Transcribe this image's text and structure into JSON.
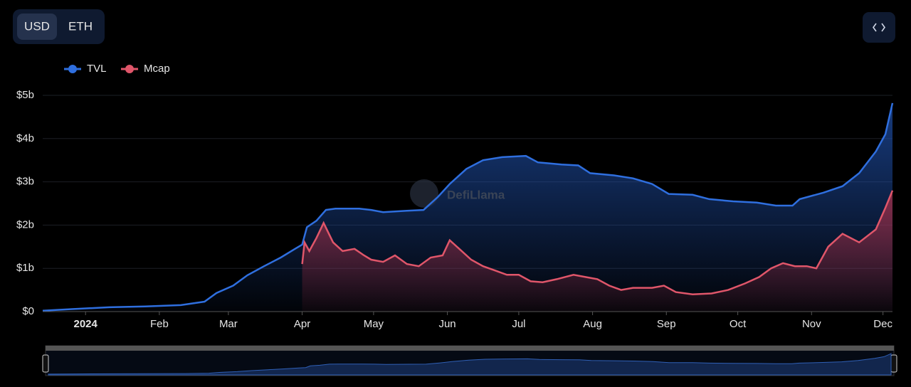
{
  "ui": {
    "currency_options": [
      "USD",
      "ETH"
    ],
    "watermark": "DefiLlama"
  },
  "chart_data": {
    "type": "area",
    "xlim": [
      -18,
      339
    ],
    "xticks": [
      {
        "value": 0,
        "label": "2024"
      },
      {
        "value": 31,
        "label": "Feb"
      },
      {
        "value": 60,
        "label": "Mar"
      },
      {
        "value": 91,
        "label": "Apr"
      },
      {
        "value": 121,
        "label": "May"
      },
      {
        "value": 152,
        "label": "Jun"
      },
      {
        "value": 182,
        "label": "Jul"
      },
      {
        "value": 213,
        "label": "Aug"
      },
      {
        "value": 244,
        "label": "Sep"
      },
      {
        "value": 274,
        "label": "Oct"
      },
      {
        "value": 305,
        "label": "Nov"
      },
      {
        "value": 335,
        "label": "Dec"
      }
    ],
    "ylim": [
      0,
      5
    ],
    "yticks": [
      {
        "value": 0,
        "label": "$0"
      },
      {
        "value": 1,
        "label": "$1b"
      },
      {
        "value": 2,
        "label": "$2b"
      },
      {
        "value": 3,
        "label": "$3b"
      },
      {
        "value": 4,
        "label": "$4b"
      },
      {
        "value": 5,
        "label": "$5b"
      }
    ],
    "grid": true,
    "legend": "top-left",
    "series": [
      {
        "name": "TVL",
        "color": "#2f6fdf",
        "x": [
          -18,
          -5,
          10,
          25,
          40,
          50,
          55,
          62,
          68,
          75,
          82,
          88,
          91,
          93,
          97,
          101,
          105,
          115,
          120,
          125,
          135,
          142,
          148,
          153,
          160,
          167,
          175,
          185,
          190,
          200,
          207,
          212,
          222,
          230,
          238,
          245,
          255,
          262,
          272,
          282,
          290,
          297,
          300,
          310,
          318,
          325,
          332,
          336,
          339
        ],
        "values": [
          0.02,
          0.06,
          0.1,
          0.12,
          0.15,
          0.23,
          0.43,
          0.6,
          0.84,
          1.05,
          1.25,
          1.45,
          1.55,
          1.95,
          2.1,
          2.35,
          2.38,
          2.38,
          2.35,
          2.3,
          2.33,
          2.35,
          2.65,
          2.95,
          3.3,
          3.5,
          3.57,
          3.6,
          3.45,
          3.4,
          3.38,
          3.2,
          3.15,
          3.08,
          2.95,
          2.72,
          2.7,
          2.6,
          2.55,
          2.52,
          2.45,
          2.45,
          2.6,
          2.75,
          2.9,
          3.2,
          3.7,
          4.1,
          4.82
        ]
      },
      {
        "name": "Mcap",
        "color": "#e0566a",
        "x": [
          91,
          92,
          94,
          97,
          100,
          104,
          108,
          113,
          117,
          120,
          125,
          130,
          135,
          140,
          145,
          150,
          153,
          157,
          162,
          167,
          172,
          177,
          182,
          187,
          192,
          198,
          205,
          210,
          215,
          220,
          225,
          230,
          238,
          243,
          248,
          255,
          263,
          270,
          277,
          283,
          288,
          293,
          298,
          303,
          307,
          312,
          318,
          325,
          332,
          336,
          339
        ],
        "values": [
          1.1,
          1.6,
          1.4,
          1.7,
          2.05,
          1.6,
          1.4,
          1.45,
          1.3,
          1.2,
          1.15,
          1.3,
          1.1,
          1.05,
          1.25,
          1.3,
          1.65,
          1.45,
          1.2,
          1.05,
          0.95,
          0.85,
          0.85,
          0.7,
          0.68,
          0.75,
          0.85,
          0.8,
          0.75,
          0.6,
          0.5,
          0.55,
          0.55,
          0.6,
          0.45,
          0.4,
          0.42,
          0.5,
          0.65,
          0.8,
          1.0,
          1.12,
          1.05,
          1.05,
          1.0,
          1.5,
          1.8,
          1.6,
          1.9,
          2.4,
          2.8
        ]
      }
    ]
  }
}
